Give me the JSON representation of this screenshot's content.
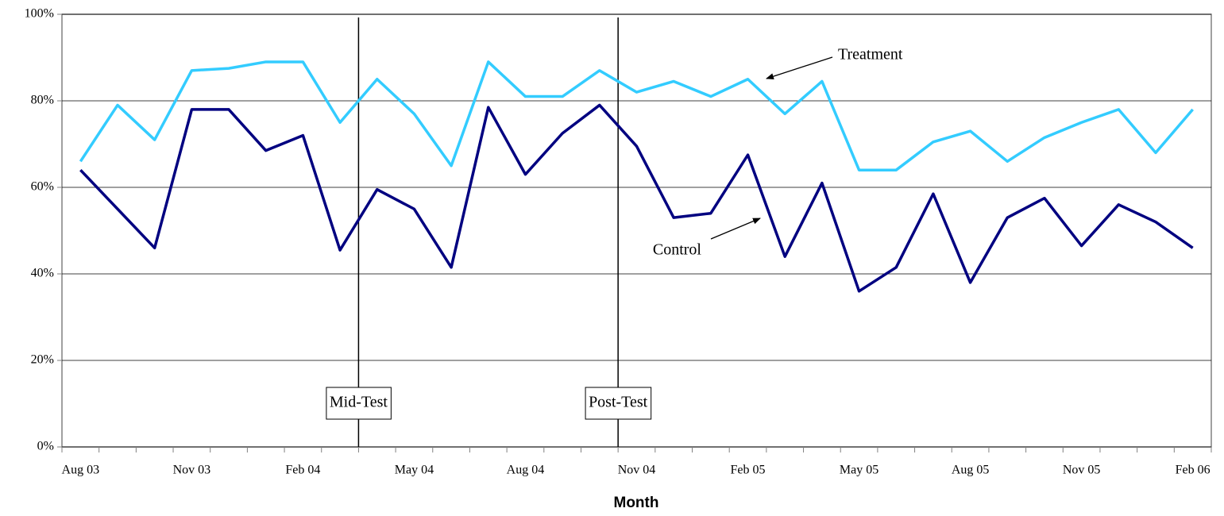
{
  "chart_data": {
    "type": "line",
    "x_label": "Month",
    "categories": [
      "Aug 03",
      null,
      null,
      "Nov 03",
      null,
      null,
      "Feb 04",
      null,
      null,
      "May 04",
      null,
      null,
      "Aug 04",
      null,
      null,
      "Nov 04",
      null,
      null,
      "Feb 05",
      null,
      null,
      "May 05",
      null,
      null,
      "Aug 05",
      null,
      null,
      "Nov 05",
      null,
      null,
      "Feb 06"
    ],
    "series": [
      {
        "name": "Treatment",
        "color": "#33ccff",
        "values": [
          66,
          79,
          71,
          87,
          87.5,
          89,
          89,
          75,
          85,
          77,
          65,
          89,
          81,
          81,
          87,
          82,
          84.5,
          81,
          85,
          77,
          84.5,
          64,
          64,
          70.5,
          73,
          66,
          71.5,
          75,
          78,
          68,
          78
        ]
      },
      {
        "name": "Control",
        "color": "#000080",
        "values": [
          64,
          55,
          46,
          78,
          78,
          68.5,
          72,
          45.5,
          59.5,
          55,
          41.5,
          78.5,
          63,
          72.5,
          79,
          69.5,
          53,
          54,
          67.5,
          44,
          61,
          36,
          41.5,
          58.5,
          38,
          53,
          57.5,
          46.5,
          56,
          52,
          46
        ]
      }
    ],
    "markers": [
      {
        "label": "Mid-Test",
        "x": 7.5
      },
      {
        "label": "Post-Test",
        "x": 14.5
      }
    ],
    "ylim": [
      0,
      100
    ],
    "yticks": [
      {
        "value": 0,
        "label": "0%"
      },
      {
        "value": 20,
        "label": "20%"
      },
      {
        "value": 40,
        "label": "40%"
      },
      {
        "value": 60,
        "label": "60%"
      },
      {
        "value": 80,
        "label": "80%"
      },
      {
        "value": 100,
        "label": "100%"
      }
    ],
    "grid": true
  }
}
